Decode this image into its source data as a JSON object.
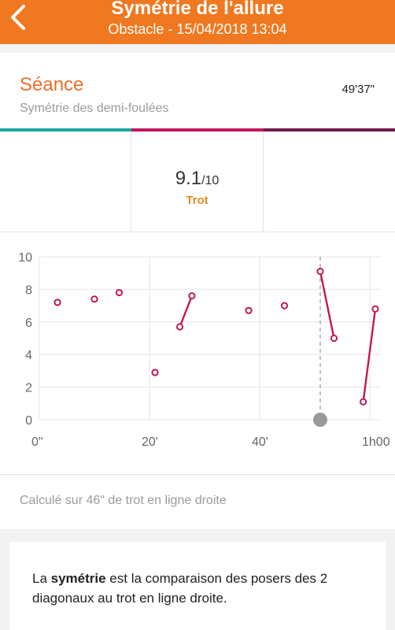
{
  "header": {
    "title": "Symétrie de l'allure",
    "subtitle": "Obstacle - 15/04/2018 13:04",
    "background_color": "#f07820"
  },
  "session": {
    "title": "Séance",
    "subtitle": "Symétrie des demi-foulées",
    "duration": "49'37\""
  },
  "segments": {
    "colors": [
      "#1aa69a",
      "#c2185b",
      "#6e1a4c"
    ],
    "selected_score": "9.1",
    "score_max": "/10",
    "gait": "Trot"
  },
  "chart_data": {
    "type": "scatter",
    "x_unit": "minutes",
    "ylim": [
      0,
      10
    ],
    "xlim": [
      0,
      62
    ],
    "y_ticks": [
      "0",
      "2",
      "4",
      "6",
      "8",
      "10"
    ],
    "x_ticks": [
      {
        "label": "0\"",
        "value": 0
      },
      {
        "label": "20'",
        "value": 20
      },
      {
        "label": "40'",
        "value": 40
      },
      {
        "label": "1h00",
        "value": 60
      }
    ],
    "series_color": "#c2185b",
    "points": [
      {
        "x": 3.3,
        "y": 7.2
      },
      {
        "x": 10,
        "y": 7.4
      },
      {
        "x": 14.5,
        "y": 7.8
      },
      {
        "x": 21,
        "y": 2.9
      },
      {
        "x": 25.5,
        "y": 5.7
      },
      {
        "x": 27.7,
        "y": 7.6
      },
      {
        "x": 38,
        "y": 6.7
      },
      {
        "x": 44.5,
        "y": 7.0
      },
      {
        "x": 51,
        "y": 9.1
      },
      {
        "x": 53.5,
        "y": 5.0
      },
      {
        "x": 58.8,
        "y": 1.1
      },
      {
        "x": 61,
        "y": 6.8
      }
    ],
    "segments": [
      [
        4,
        5
      ],
      [
        8,
        9
      ],
      [
        10,
        11
      ]
    ],
    "cursor_x": 51,
    "grid": true
  },
  "footer_note": "Calculé sur 46\" de trot en ligne droite",
  "info": {
    "prefix": "La ",
    "bold": "symétrie",
    "suffix": " est la comparaison des posers des 2 diagonaux au trot en ligne droite."
  }
}
